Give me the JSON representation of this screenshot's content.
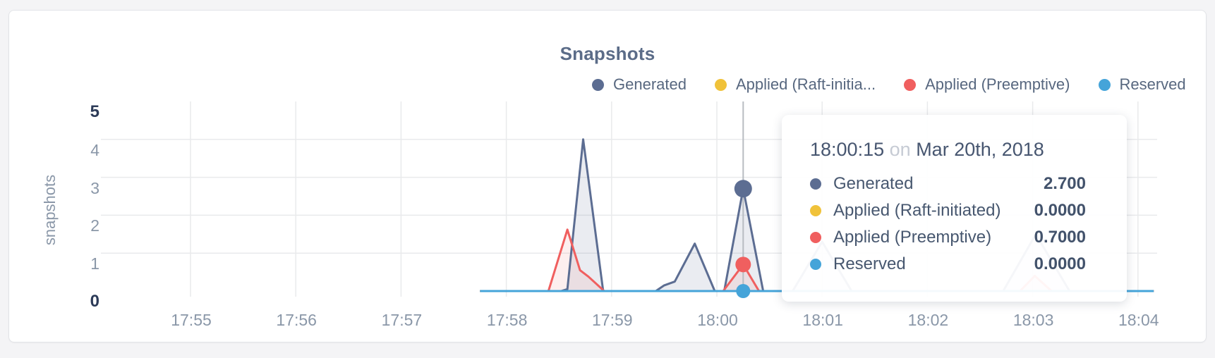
{
  "chart_data": {
    "type": "line",
    "title": "Snapshots",
    "xlabel": "",
    "ylabel": "snapshots",
    "ylim": [
      0,
      5
    ],
    "y_ticks": [
      0,
      1,
      2,
      3,
      4,
      5
    ],
    "x_ticks": [
      "17:55",
      "17:56",
      "17:57",
      "17:58",
      "17:59",
      "18:00",
      "18:01",
      "18:02",
      "18:03",
      "18:04"
    ],
    "x_unit": "minutes after 17:55",
    "grid": true,
    "legend_position": "top-right",
    "series": [
      {
        "name": "Generated",
        "color": "#5c6d92",
        "fill": "rgba(92,109,146,0.13)",
        "points": [
          [
            2.75,
            0
          ],
          [
            3.52,
            0
          ],
          [
            3.58,
            0.05
          ],
          [
            3.73,
            4.0
          ],
          [
            3.92,
            0
          ],
          [
            4.42,
            0
          ],
          [
            4.5,
            0.15
          ],
          [
            4.6,
            0.25
          ],
          [
            4.79,
            1.25
          ],
          [
            4.98,
            0
          ],
          [
            5.07,
            0
          ],
          [
            5.25,
            2.7
          ],
          [
            5.44,
            0
          ],
          [
            5.72,
            0
          ],
          [
            6.0,
            1.3
          ],
          [
            6.28,
            0
          ],
          [
            7.72,
            0
          ],
          [
            8.03,
            1.5
          ],
          [
            8.35,
            0
          ],
          [
            9.15,
            0
          ]
        ]
      },
      {
        "name": "Applied (Raft-initiated)",
        "legend_label": "Applied (Raft-initia...",
        "color": "#f0c23a",
        "fill": null,
        "points": [
          [
            2.75,
            0
          ],
          [
            9.15,
            0
          ]
        ]
      },
      {
        "name": "Applied (Preemptive)",
        "color": "#f05f5f",
        "fill": "rgba(240,95,95,0.10)",
        "points": [
          [
            2.75,
            0
          ],
          [
            3.4,
            0
          ],
          [
            3.58,
            1.62
          ],
          [
            3.7,
            0.55
          ],
          [
            3.78,
            0.38
          ],
          [
            3.93,
            0
          ],
          [
            5.06,
            0
          ],
          [
            5.25,
            0.7
          ],
          [
            5.4,
            0
          ],
          [
            7.88,
            0
          ],
          [
            8.02,
            0.4
          ],
          [
            8.18,
            0
          ],
          [
            9.15,
            0
          ]
        ]
      },
      {
        "name": "Reserved",
        "color": "#45a4d9",
        "fill": null,
        "points": [
          [
            2.75,
            0
          ],
          [
            9.15,
            0
          ]
        ]
      }
    ],
    "crosshair": {
      "x": 5.25,
      "time_label": "18:00:15",
      "markers": [
        {
          "series": "Generated",
          "value": 2.7
        },
        {
          "series": "Applied (Preemptive)",
          "value": 0.7
        },
        {
          "series": "Reserved",
          "value": 0
        }
      ]
    }
  },
  "palette": {
    "gridline": "#e9eaec",
    "crosshair": "#b8bcc2"
  },
  "tooltip": {
    "time": "18:00:15",
    "connector": "on",
    "date": "Mar 20th, 2018",
    "rows": [
      {
        "label": "Generated",
        "value": "2.700",
        "color": "#5c6d92"
      },
      {
        "label": "Applied (Raft-initiated)",
        "value": "0.0000",
        "color": "#f0c23a"
      },
      {
        "label": "Applied (Preemptive)",
        "value": "0.7000",
        "color": "#f05f5f"
      },
      {
        "label": "Reserved",
        "value": "0.0000",
        "color": "#45a4d9"
      }
    ]
  }
}
